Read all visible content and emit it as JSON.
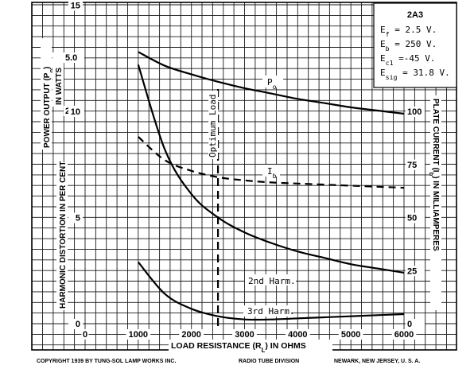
{
  "chart_data": {
    "type": "line",
    "x": [
      1000,
      1500,
      2000,
      2500,
      3000,
      3500,
      4000,
      4500,
      5000,
      5500,
      6000
    ],
    "xlim": [
      0,
      6000
    ],
    "xticks": [
      0,
      1000,
      2000,
      3000,
      4000,
      5000,
      6000
    ],
    "xlabel": "LOAD RESISTANCE (R",
    "xlabel_sub": "L",
    "xlabel_tail": ") IN OHMS",
    "axes": {
      "power": {
        "label": "POWER OUTPUT (P",
        "label_sub": "o",
        "label_tail": ")",
        "label2": "IN WATTS",
        "ticks": [
          "5.0",
          "2.5"
        ],
        "tick_values": [
          5.0,
          2.5
        ],
        "range": [
          0,
          7.5
        ]
      },
      "distortion": {
        "label": "HARMONIC DISTORTION IN PER CENT",
        "ticks": [
          "15",
          "10",
          "5",
          "0"
        ],
        "tick_values": [
          15,
          10,
          5,
          0
        ],
        "range": [
          0,
          20
        ]
      },
      "plate_current": {
        "label": "PLATE CURRENT (I",
        "label_sub": "b",
        "label_tail": ") IN MILLIAMPERES",
        "ticks": [
          "100",
          "75",
          "50",
          "25",
          "0"
        ],
        "tick_values": [
          100,
          75,
          50,
          25,
          0
        ],
        "range": [
          0,
          125
        ]
      }
    },
    "series": [
      {
        "name": "P",
        "name_sub": "o",
        "axis": "power",
        "style": "solid",
        "values": [
          5.25,
          4.6,
          4.2,
          3.85,
          3.55,
          3.3,
          3.05,
          2.85,
          2.65,
          2.5,
          2.35
        ]
      },
      {
        "name": "I",
        "name_sub": "b",
        "axis": "plate_current",
        "style": "dashed",
        "values": [
          88,
          77,
          72,
          69,
          67.5,
          66.5,
          66,
          65.5,
          65,
          64.5,
          64
        ]
      },
      {
        "name": "2nd Harm.",
        "axis": "distortion",
        "style": "solid",
        "values": [
          12.2,
          8.2,
          6.1,
          5.0,
          4.3,
          3.8,
          3.4,
          3.1,
          2.8,
          2.6,
          2.4
        ]
      },
      {
        "name": "3rd Harm.",
        "axis": "distortion",
        "style": "solid",
        "values": [
          2.9,
          1.4,
          0.7,
          0.35,
          0.2,
          0.2,
          0.25,
          0.3,
          0.35,
          0.4,
          0.45
        ]
      }
    ],
    "annotations": {
      "optimum_load_x": 2500,
      "optimum_load_label": "Optimum Load"
    },
    "legend": {
      "tube": "2A3",
      "lines": [
        {
          "sym": "E",
          "sub": "f",
          "val": " = 2.5 V."
        },
        {
          "sym": "E",
          "sub": "b",
          "val": " = 250 V."
        },
        {
          "sym": "E",
          "sub": "c1",
          "val": " =-45 V."
        },
        {
          "sym": "E",
          "sub": "sig",
          "val": " = 31.8 V."
        }
      ]
    },
    "grid": true
  },
  "footer": {
    "copyright": "COPYRIGHT  1939  BY   TUNG-SOL LAMP WORKS INC.",
    "division": "RADIO TUBE DIVISION",
    "location": "NEWARK, NEW JERSEY, U. S. A."
  }
}
